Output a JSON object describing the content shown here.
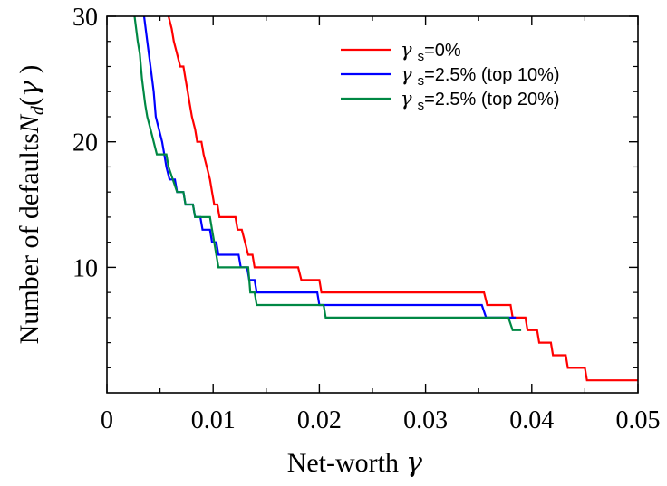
{
  "chart_data": {
    "type": "line",
    "xlabel": "Net-worth",
    "xlabel_symbol": "γ",
    "ylabel_prefix": "Number of defaults",
    "ylabel_symbol": "N",
    "ylabel_subscript": "d",
    "ylabel_arg": "γ",
    "xlim": [
      0,
      0.05
    ],
    "ylim": [
      0.5,
      30
    ],
    "xticks": [
      0,
      0.01,
      0.02,
      0.03,
      0.04,
      0.05
    ],
    "xtick_labels": [
      "0",
      "0.01",
      "0.02",
      "0.03",
      "0.04",
      "0.05"
    ],
    "yticks": [
      10,
      20,
      30
    ],
    "ytick_labels": [
      "10",
      "20",
      "30"
    ],
    "grid": false,
    "legend_position": "top-right",
    "series": [
      {
        "name": "γ s=0%",
        "legend_symbol": "γ",
        "legend_subscript": "s",
        "legend_rest": "=0%",
        "color": "#ff0000",
        "points": [
          [
            0.0058,
            30
          ],
          [
            0.0061,
            29
          ],
          [
            0.0063,
            28
          ],
          [
            0.0066,
            27
          ],
          [
            0.0069,
            26
          ],
          [
            0.0072,
            26
          ],
          [
            0.0074,
            25
          ],
          [
            0.0076,
            24
          ],
          [
            0.0078,
            23
          ],
          [
            0.008,
            22
          ],
          [
            0.0083,
            21
          ],
          [
            0.0085,
            20
          ],
          [
            0.0089,
            20
          ],
          [
            0.0091,
            19
          ],
          [
            0.0094,
            18
          ],
          [
            0.0097,
            17
          ],
          [
            0.0099,
            16
          ],
          [
            0.0101,
            15
          ],
          [
            0.0104,
            15
          ],
          [
            0.0106,
            14
          ],
          [
            0.011,
            14
          ],
          [
            0.0113,
            14
          ],
          [
            0.0117,
            14
          ],
          [
            0.0121,
            14
          ],
          [
            0.0123,
            13
          ],
          [
            0.0127,
            13
          ],
          [
            0.013,
            12
          ],
          [
            0.0133,
            11
          ],
          [
            0.0137,
            11
          ],
          [
            0.0139,
            10
          ],
          [
            0.018,
            10
          ],
          [
            0.0183,
            9
          ],
          [
            0.02,
            9
          ],
          [
            0.0202,
            8
          ],
          [
            0.0355,
            8
          ],
          [
            0.0358,
            7
          ],
          [
            0.038,
            7
          ],
          [
            0.0382,
            6
          ],
          [
            0.0394,
            6
          ],
          [
            0.0396,
            5
          ],
          [
            0.0405,
            5
          ],
          [
            0.0407,
            4
          ],
          [
            0.0418,
            4
          ],
          [
            0.042,
            3
          ],
          [
            0.0432,
            3
          ],
          [
            0.0434,
            2
          ],
          [
            0.045,
            2
          ],
          [
            0.0452,
            1
          ],
          [
            0.05,
            1
          ]
        ]
      },
      {
        "name": "γ s=2.5% (top 10%)",
        "legend_symbol": "γ",
        "legend_subscript": "s",
        "legend_rest": "=2.5% (top 10%)",
        "color": "#0000ff",
        "points": [
          [
            0.0035,
            30
          ],
          [
            0.0038,
            28
          ],
          [
            0.0041,
            26
          ],
          [
            0.0044,
            24
          ],
          [
            0.0046,
            22
          ],
          [
            0.0049,
            21
          ],
          [
            0.0052,
            20
          ],
          [
            0.0054,
            19
          ],
          [
            0.0056,
            18
          ],
          [
            0.0059,
            17
          ],
          [
            0.0064,
            17
          ],
          [
            0.0066,
            16
          ],
          [
            0.0072,
            16
          ],
          [
            0.0074,
            15
          ],
          [
            0.0081,
            15
          ],
          [
            0.0083,
            14
          ],
          [
            0.0088,
            14
          ],
          [
            0.009,
            13
          ],
          [
            0.0097,
            13
          ],
          [
            0.0099,
            12
          ],
          [
            0.0103,
            12
          ],
          [
            0.0105,
            11
          ],
          [
            0.0124,
            11
          ],
          [
            0.0126,
            10
          ],
          [
            0.0132,
            10
          ],
          [
            0.0134,
            9
          ],
          [
            0.0139,
            9
          ],
          [
            0.0141,
            8
          ],
          [
            0.0198,
            8
          ],
          [
            0.02,
            7
          ],
          [
            0.0353,
            7
          ],
          [
            0.0357,
            6
          ],
          [
            0.0385,
            6
          ]
        ]
      },
      {
        "name": "γ s=2.5% (top 20%)",
        "legend_symbol": "γ",
        "legend_subscript": "s",
        "legend_rest": "=2.5% (top 20%)",
        "color": "#008844",
        "points": [
          [
            0.0026,
            30
          ],
          [
            0.0029,
            28
          ],
          [
            0.0031,
            27
          ],
          [
            0.0033,
            25
          ],
          [
            0.0036,
            23
          ],
          [
            0.0038,
            22
          ],
          [
            0.0041,
            21
          ],
          [
            0.0044,
            20
          ],
          [
            0.0047,
            19
          ],
          [
            0.0056,
            19
          ],
          [
            0.0058,
            18
          ],
          [
            0.0062,
            17
          ],
          [
            0.0066,
            16
          ],
          [
            0.0072,
            16
          ],
          [
            0.0074,
            15
          ],
          [
            0.0081,
            15
          ],
          [
            0.0083,
            14
          ],
          [
            0.0097,
            14
          ],
          [
            0.0099,
            13
          ],
          [
            0.0101,
            12
          ],
          [
            0.0103,
            11
          ],
          [
            0.0105,
            10
          ],
          [
            0.0133,
            10
          ],
          [
            0.0135,
            8
          ],
          [
            0.0139,
            8
          ],
          [
            0.0141,
            7
          ],
          [
            0.0204,
            7
          ],
          [
            0.0206,
            6
          ],
          [
            0.0378,
            6
          ],
          [
            0.0382,
            5
          ],
          [
            0.039,
            5
          ]
        ]
      }
    ]
  }
}
